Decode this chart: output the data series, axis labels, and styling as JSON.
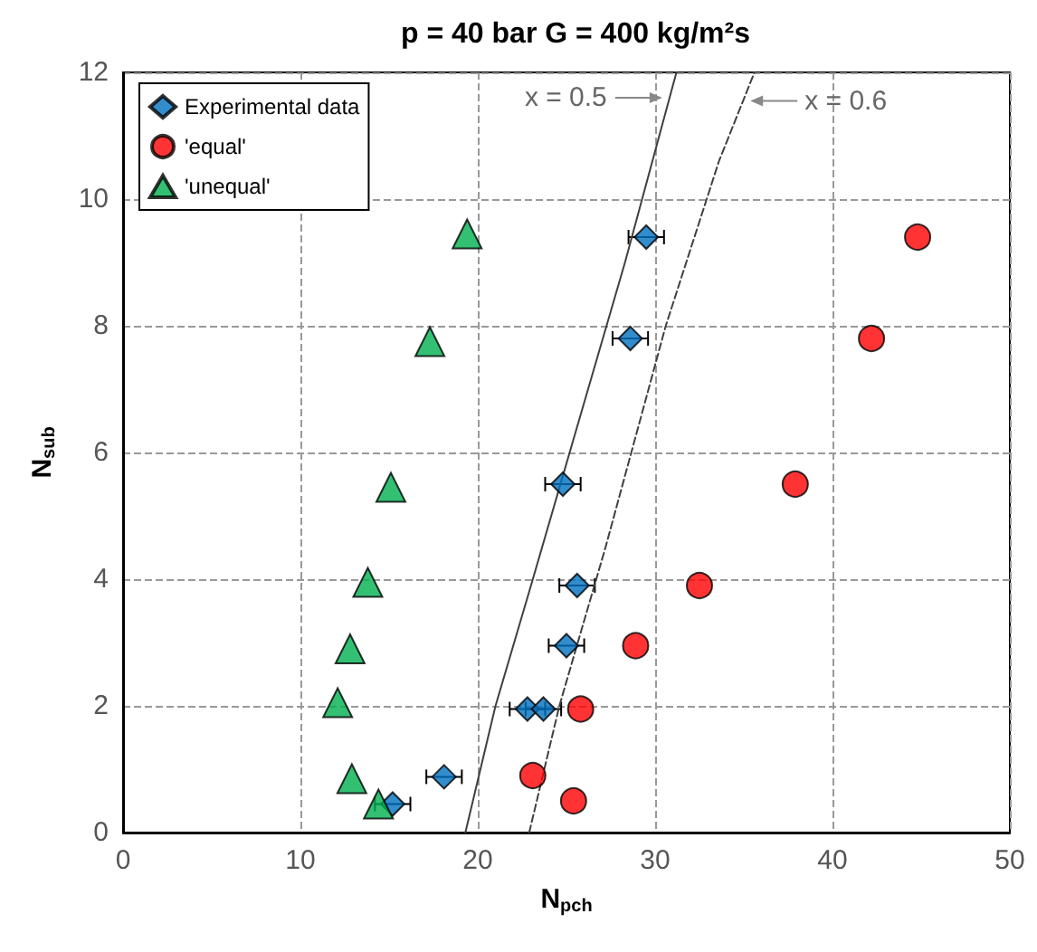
{
  "chart_data": {
    "type": "scatter",
    "title": "p = 40 bar G = 400 kg/m²s",
    "xlabel": "N$_{pch}$",
    "ylabel": "N$_{sub}$",
    "xlim": [
      0,
      50
    ],
    "xticks": [
      0,
      10,
      20,
      30,
      40,
      50
    ],
    "ylim": [
      0,
      12
    ],
    "yticks": [
      0,
      2,
      4,
      6,
      8,
      10,
      12
    ],
    "grid": true,
    "legend": "top left",
    "series": [
      {
        "name": "Experimental data",
        "marker": "diamond",
        "color": "#0070c0",
        "x": [
          15.2,
          18.1,
          22.8,
          23.7,
          25.0,
          25.6,
          24.8,
          28.6,
          29.5
        ],
        "values": [
          0.45,
          0.88,
          1.95,
          1.95,
          2.95,
          3.9,
          5.5,
          7.8,
          9.4
        ],
        "xerrors": [
          1,
          1,
          1,
          1,
          1,
          1,
          1,
          1,
          1
        ]
      },
      {
        "name": "'equal'",
        "marker": "circle",
        "color": "#ff0000",
        "x": [
          23.1,
          25.4,
          25.8,
          28.9,
          32.5,
          37.9,
          42.2,
          44.8
        ],
        "values": [
          0.9,
          0.5,
          1.95,
          2.95,
          3.9,
          5.5,
          7.8,
          9.4
        ]
      },
      {
        "name": "'unequal'",
        "marker": "triangle",
        "color": "#00b050",
        "x": [
          14.4,
          12.9,
          12.1,
          12.8,
          13.8,
          15.1,
          17.3,
          19.4
        ],
        "values": [
          0.45,
          0.85,
          2.05,
          2.9,
          3.95,
          5.45,
          7.75,
          9.45
        ]
      },
      {
        "type": "line",
        "marker": "none",
        "line_style": "solid",
        "color": "#404040",
        "x": [
          19.3,
          21.0,
          23.0,
          25.7,
          28.3,
          31.2
        ],
        "values": [
          0,
          2,
          3.9,
          6.5,
          9,
          12
        ]
      },
      {
        "type": "line",
        "marker": "none",
        "line_style": "dashed",
        "color": "#404040",
        "x": [
          22.9,
          24.6,
          27.2,
          30.6,
          33.6,
          35.6
        ],
        "values": [
          0,
          2,
          4.5,
          8,
          10.6,
          12
        ]
      }
    ],
    "annotations": [
      {
        "text": "x = 0.5",
        "x": 30.81,
        "y": 11.6
      },
      {
        "text": "x = 0.6",
        "x": 34.96,
        "y": 11.55
      }
    ]
  }
}
